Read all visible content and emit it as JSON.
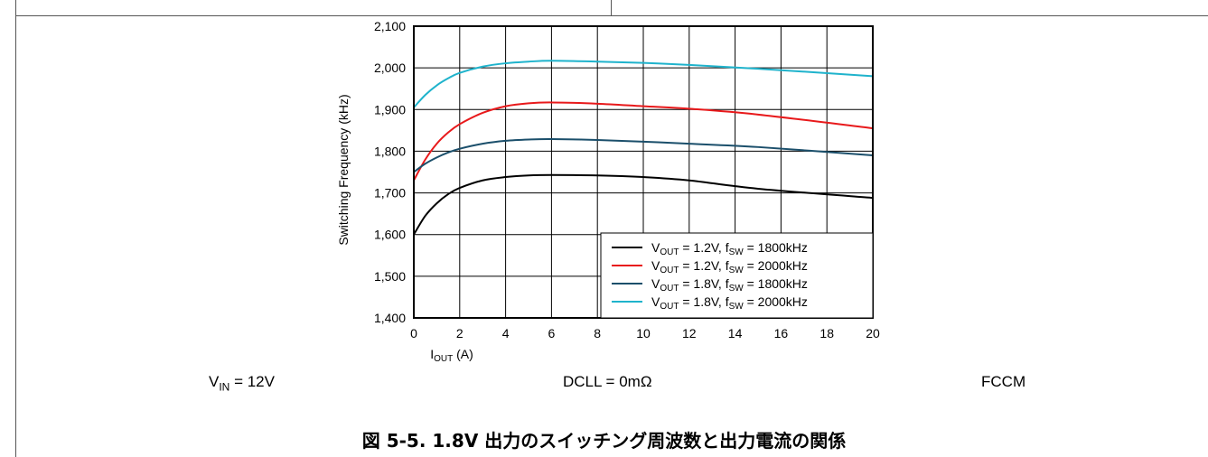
{
  "chart_data": {
    "type": "line",
    "xlabel": {
      "main": "I",
      "sub": "OUT",
      "rest": " (A)"
    },
    "ylabel": "Switching Frequency (kHz)",
    "xlim": [
      0,
      20
    ],
    "ylim": [
      1400,
      2100
    ],
    "xticks": [
      "0",
      "2",
      "4",
      "6",
      "8",
      "10",
      "12",
      "14",
      "16",
      "18",
      "20"
    ],
    "yticks": [
      "1,400",
      "1,500",
      "1,600",
      "1,700",
      "1,800",
      "1,900",
      "2,000",
      "2,100"
    ],
    "grid": true,
    "legend_position": "bottom-right",
    "series": [
      {
        "name": "VOUT = 1.2V, fSW = 1800kHz",
        "legend": {
          "a": "V",
          "b": "OUT",
          "c": " = 1.2V, f",
          "d": "SW",
          "e": " = 1800kHz"
        },
        "color": "#000000",
        "x": [
          0,
          0.5,
          1,
          1.5,
          2,
          3,
          4,
          5,
          6,
          8,
          10,
          12,
          15,
          20
        ],
        "y": [
          1600,
          1645,
          1675,
          1697,
          1712,
          1730,
          1738,
          1742,
          1743,
          1742,
          1738,
          1730,
          1710,
          1688
        ]
      },
      {
        "name": "VOUT = 1.2V, fSW = 2000kHz",
        "legend": {
          "a": "V",
          "b": "OUT",
          "c": " = 1.2V, f",
          "d": "SW",
          "e": " = 2000kHz"
        },
        "color": "#e8191b",
        "x": [
          0,
          0.5,
          1,
          1.5,
          2,
          3,
          4,
          5,
          6,
          8,
          10,
          12,
          15,
          20
        ],
        "y": [
          1730,
          1780,
          1818,
          1845,
          1865,
          1892,
          1908,
          1915,
          1917,
          1914,
          1908,
          1902,
          1888,
          1855
        ]
      },
      {
        "name": "VOUT = 1.8V, fSW = 1800kHz",
        "legend": {
          "a": "V",
          "b": "OUT",
          "c": " = 1.8V, f",
          "d": "SW",
          "e": " = 1800kHz"
        },
        "color": "#1b4f6b",
        "x": [
          0,
          0.5,
          1,
          1.5,
          2,
          3,
          4,
          5,
          6,
          8,
          10,
          12,
          15,
          20
        ],
        "y": [
          1750,
          1770,
          1785,
          1797,
          1806,
          1818,
          1825,
          1828,
          1829,
          1827,
          1823,
          1818,
          1810,
          1790
        ]
      },
      {
        "name": "VOUT = 1.8V, fSW = 2000kHz",
        "legend": {
          "a": "V",
          "b": "OUT",
          "c": " = 1.8V, f",
          "d": "SW",
          "e": " = 2000kHz"
        },
        "color": "#1fb3cc",
        "x": [
          0,
          0.5,
          1,
          1.5,
          2,
          3,
          4,
          5,
          6,
          8,
          10,
          12,
          15,
          20
        ],
        "y": [
          1905,
          1935,
          1958,
          1975,
          1988,
          2003,
          2011,
          2015,
          2017,
          2015,
          2012,
          2007,
          1998,
          1980
        ]
      }
    ]
  },
  "conditions": {
    "vin": {
      "main": "V",
      "sub": "IN",
      "rest": " = 12V"
    },
    "dcll": "DCLL = 0mΩ",
    "mode": "FCCM"
  },
  "caption": "図 5-5. 1.8V 出力のスイッチング周波数と出力電流の関係"
}
